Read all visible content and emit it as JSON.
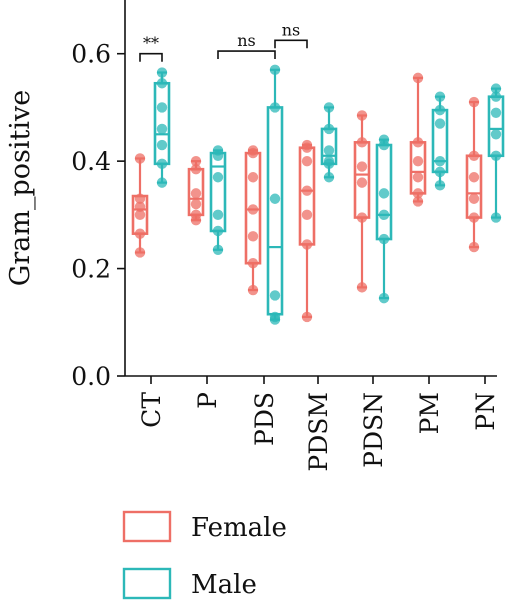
{
  "chart_data": {
    "type": "box",
    "ylabel": "Gram_positive",
    "ylim": [
      0.0,
      0.7
    ],
    "yticks": [
      0.0,
      0.2,
      0.4,
      0.6
    ],
    "ytick_labels": [
      "0.0",
      "0.2",
      "0.4",
      "0.6"
    ],
    "categories": [
      "CT",
      "P",
      "PDS",
      "PDSM",
      "PDSN",
      "PM",
      "PN"
    ],
    "legend_placement": "bottom",
    "series": [
      {
        "name": "Female",
        "color": "#ee6f66",
        "boxes": [
          {
            "min": 0.23,
            "q1": 0.265,
            "median": 0.31,
            "q3": 0.335,
            "max": 0.405,
            "points": [
              0.23,
              0.265,
              0.3,
              0.315,
              0.33,
              0.405
            ]
          },
          {
            "min": 0.29,
            "q1": 0.3,
            "median": 0.33,
            "q3": 0.385,
            "max": 0.4,
            "points": [
              0.29,
              0.3,
              0.32,
              0.34,
              0.385,
              0.4
            ]
          },
          {
            "min": 0.16,
            "q1": 0.21,
            "median": 0.31,
            "q3": 0.415,
            "max": 0.42,
            "points": [
              0.16,
              0.21,
              0.26,
              0.31,
              0.37,
              0.415,
              0.42
            ]
          },
          {
            "min": 0.11,
            "q1": 0.245,
            "median": 0.345,
            "q3": 0.425,
            "max": 0.43,
            "points": [
              0.11,
              0.245,
              0.3,
              0.345,
              0.4,
              0.425,
              0.43
            ]
          },
          {
            "min": 0.165,
            "q1": 0.295,
            "median": 0.375,
            "q3": 0.435,
            "max": 0.485,
            "points": [
              0.165,
              0.295,
              0.36,
              0.39,
              0.435,
              0.485
            ]
          },
          {
            "min": 0.325,
            "q1": 0.34,
            "median": 0.38,
            "q3": 0.435,
            "max": 0.555,
            "points": [
              0.325,
              0.34,
              0.37,
              0.4,
              0.435,
              0.555
            ]
          },
          {
            "min": 0.24,
            "q1": 0.295,
            "median": 0.34,
            "q3": 0.41,
            "max": 0.51,
            "points": [
              0.24,
              0.295,
              0.33,
              0.37,
              0.41,
              0.51
            ]
          }
        ]
      },
      {
        "name": "Male",
        "color": "#2cb8b8",
        "boxes": [
          {
            "min": 0.36,
            "q1": 0.395,
            "median": 0.45,
            "q3": 0.545,
            "max": 0.565,
            "points": [
              0.36,
              0.395,
              0.43,
              0.46,
              0.5,
              0.545,
              0.565
            ]
          },
          {
            "min": 0.235,
            "q1": 0.27,
            "median": 0.39,
            "q3": 0.415,
            "max": 0.42,
            "points": [
              0.235,
              0.27,
              0.3,
              0.37,
              0.41,
              0.42
            ]
          },
          {
            "min": 0.105,
            "q1": 0.115,
            "median": 0.24,
            "q3": 0.5,
            "max": 0.57,
            "points": [
              0.105,
              0.11,
              0.15,
              0.33,
              0.5,
              0.57
            ]
          },
          {
            "min": 0.37,
            "q1": 0.395,
            "median": 0.41,
            "q3": 0.46,
            "max": 0.5,
            "points": [
              0.37,
              0.395,
              0.4,
              0.42,
              0.46,
              0.5
            ]
          },
          {
            "min": 0.145,
            "q1": 0.255,
            "median": 0.3,
            "q3": 0.43,
            "max": 0.44,
            "points": [
              0.145,
              0.255,
              0.3,
              0.34,
              0.43,
              0.44
            ]
          },
          {
            "min": 0.355,
            "q1": 0.38,
            "median": 0.4,
            "q3": 0.495,
            "max": 0.52,
            "points": [
              0.355,
              0.38,
              0.4,
              0.47,
              0.495,
              0.52
            ]
          },
          {
            "min": 0.295,
            "q1": 0.41,
            "median": 0.46,
            "q3": 0.52,
            "max": 0.535,
            "points": [
              0.295,
              0.41,
              0.45,
              0.49,
              0.52,
              0.535
            ]
          }
        ]
      }
    ],
    "annotations": [
      {
        "text": "**",
        "from": "CT Female",
        "to": "CT Male",
        "y": 0.6
      },
      {
        "text": "ns",
        "from": "P Male",
        "to": "PDS Male",
        "y": 0.605
      },
      {
        "text": "ns",
        "from": "PDS Male",
        "to": "PDSM Female",
        "y": 0.625
      }
    ]
  }
}
